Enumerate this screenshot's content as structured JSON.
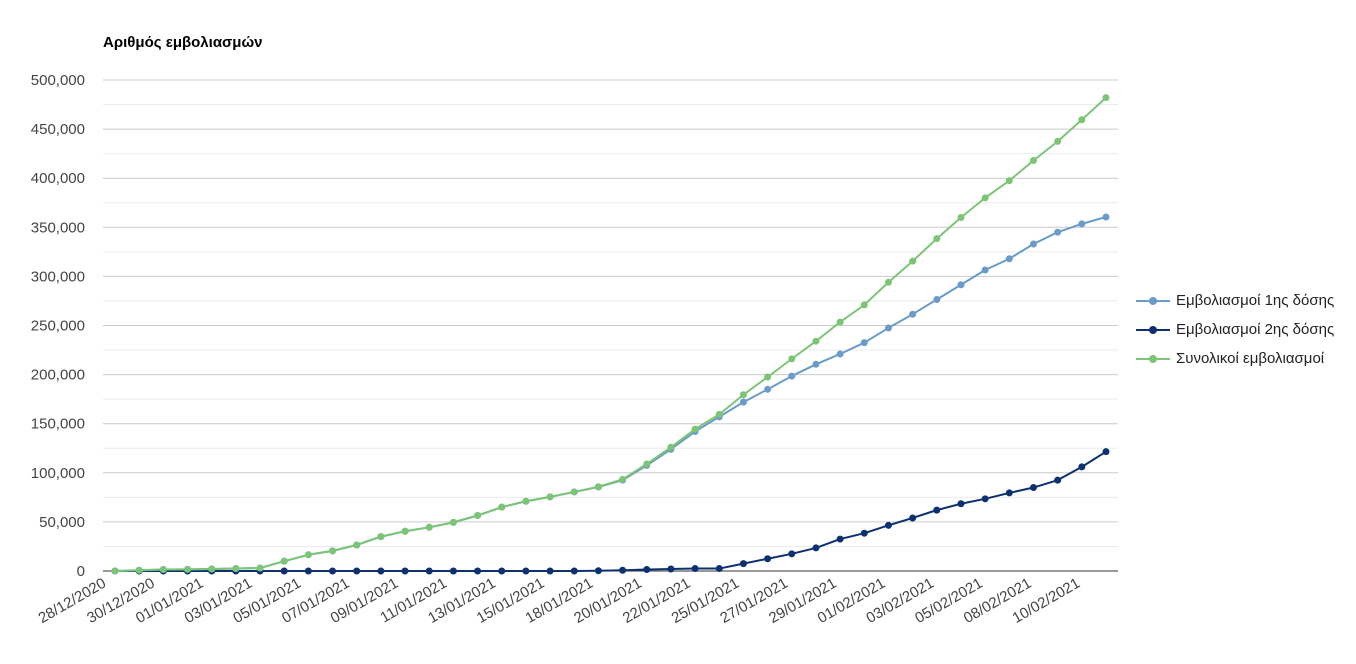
{
  "chart_data": {
    "type": "line",
    "title": "Αριθμός εμβολιασμών",
    "xlabel": "",
    "ylabel": "",
    "ylim": [
      0,
      500000
    ],
    "yticks": [
      "0",
      "50,000",
      "100,000",
      "150,000",
      "200,000",
      "250,000",
      "300,000",
      "350,000",
      "400,000",
      "450,000",
      "500,000"
    ],
    "grid": true,
    "legend_position": "right",
    "x_tick_labels": [
      "28/12/2020",
      "30/12/2020",
      "01/01/2021",
      "03/01/2021",
      "05/01/2021",
      "07/01/2021",
      "09/01/2021",
      "11/01/2021",
      "13/01/2021",
      "15/01/2021",
      "18/01/2021",
      "20/01/2021",
      "22/01/2021",
      "25/01/2021",
      "27/01/2021",
      "29/01/2021",
      "01/02/2021",
      "03/02/2021",
      "05/02/2021",
      "08/02/2021",
      "10/02/2021"
    ],
    "series": [
      {
        "name": "Εμβολιασμοί 1ης δόσης",
        "color": "#6a9bc9",
        "values": [
          0,
          800,
          1500,
          1700,
          2000,
          2500,
          3000,
          10000,
          16500,
          20500,
          26500,
          35000,
          40500,
          44500,
          49500,
          56500,
          65000,
          71000,
          75500,
          80500,
          85500,
          92500,
          107500,
          124000,
          142000,
          157000,
          172000,
          185000,
          198500,
          210500,
          221000,
          232500,
          247500,
          261500,
          276500,
          291500,
          306500,
          318000,
          333000,
          345000,
          353500,
          360500
        ]
      },
      {
        "name": "Εμβολιασμοί 2ης δόσης",
        "color": "#0d3170",
        "values": [
          0,
          0,
          0,
          0,
          0,
          0,
          0,
          0,
          0,
          0,
          0,
          0,
          0,
          0,
          0,
          0,
          0,
          0,
          0,
          0,
          300,
          800,
          1500,
          2000,
          2500,
          2500,
          7500,
          12500,
          17500,
          23500,
          32500,
          38500,
          46500,
          54000,
          62000,
          68500,
          73500,
          79500,
          85000,
          92500,
          106000,
          121500
        ]
      },
      {
        "name": "Συνολικοί εμβολιασμοί",
        "color": "#7cc576",
        "values": [
          0,
          800,
          1500,
          1700,
          2000,
          2500,
          3000,
          10000,
          16500,
          20500,
          26500,
          35000,
          40500,
          44500,
          49500,
          56500,
          65000,
          71000,
          75500,
          80500,
          85800,
          93300,
          109000,
          126000,
          144500,
          159500,
          179500,
          197500,
          216000,
          234000,
          253500,
          271000,
          294000,
          315500,
          338500,
          360000,
          380000,
          397500,
          418000,
          437500,
          459500,
          482000
        ]
      }
    ]
  }
}
